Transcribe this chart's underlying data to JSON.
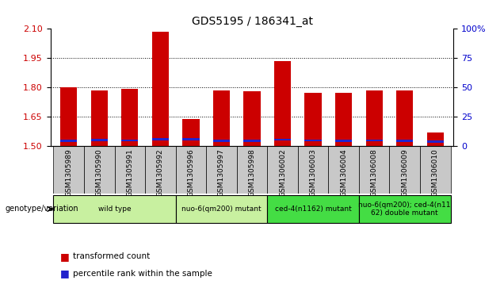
{
  "title": "GDS5195 / 186341_at",
  "samples": [
    "GSM1305989",
    "GSM1305990",
    "GSM1305991",
    "GSM1305992",
    "GSM1305996",
    "GSM1305997",
    "GSM1305998",
    "GSM1306002",
    "GSM1306003",
    "GSM1306004",
    "GSM1306008",
    "GSM1306009",
    "GSM1306010"
  ],
  "red_values": [
    1.8,
    1.787,
    1.793,
    2.085,
    1.638,
    1.787,
    1.78,
    1.937,
    1.774,
    1.773,
    1.785,
    1.787,
    1.57
  ],
  "blue_bottom": [
    1.522,
    1.527,
    1.524,
    1.53,
    1.53,
    1.522,
    1.522,
    1.528,
    1.524,
    1.522,
    1.524,
    1.522,
    1.518
  ],
  "blue_height": [
    0.012,
    0.012,
    0.012,
    0.012,
    0.012,
    0.012,
    0.012,
    0.012,
    0.012,
    0.012,
    0.012,
    0.012,
    0.012
  ],
  "ymin": 1.5,
  "ymax": 2.1,
  "y_ticks_left": [
    1.5,
    1.65,
    1.8,
    1.95,
    2.1
  ],
  "y_ticks_right_vals": [
    0,
    25,
    50,
    75,
    100
  ],
  "y_ticks_right_labels": [
    "0",
    "25",
    "50",
    "75",
    "100%"
  ],
  "groups": [
    {
      "label": "wild type",
      "start": 0,
      "end": 3,
      "color": "#c8f0a0"
    },
    {
      "label": "nuo-6(qm200) mutant",
      "start": 4,
      "end": 6,
      "color": "#c8f0a0"
    },
    {
      "label": "ced-4(n1162) mutant",
      "start": 7,
      "end": 9,
      "color": "#44dd44"
    },
    {
      "label": "nuo-6(qm200); ced-4(n11\n62) double mutant",
      "start": 10,
      "end": 12,
      "color": "#44dd44"
    }
  ],
  "bar_color_red": "#cc0000",
  "bar_color_blue": "#2222cc",
  "bar_width": 0.55,
  "xtick_bg": "#c8c8c8",
  "genotype_label": "genotype/variation",
  "legend1": "transformed count",
  "legend2": "percentile rank within the sample",
  "left_tick_color": "#cc0000",
  "right_tick_color": "#0000cc",
  "dotted_lines": [
    1.65,
    1.8,
    1.95
  ]
}
